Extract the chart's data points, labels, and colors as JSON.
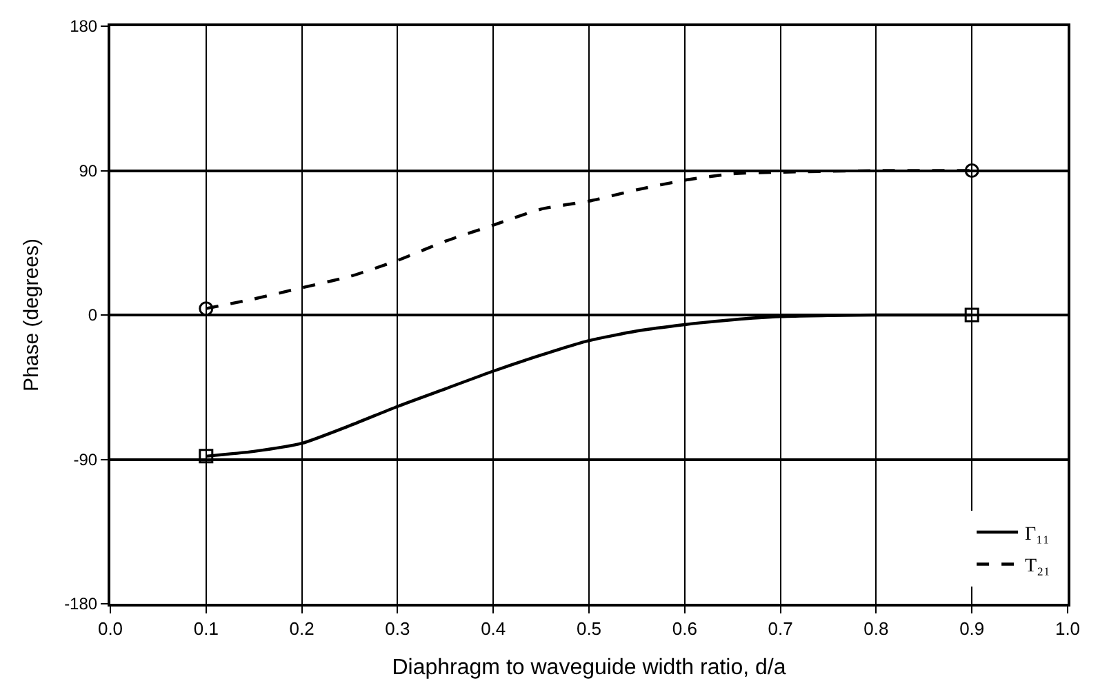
{
  "chart_data": {
    "type": "line",
    "xlabel": "Diaphragm to waveguide width ratio, d/a",
    "ylabel": "Phase (degrees)",
    "xlim": [
      0,
      1.0
    ],
    "ylim": [
      -180,
      180
    ],
    "xticks": [
      {
        "value": 0,
        "label": "0.0"
      },
      {
        "value": 0.1,
        "label": "0.1"
      },
      {
        "value": 0.2,
        "label": "0.2"
      },
      {
        "value": 0.3,
        "label": "0.3"
      },
      {
        "value": 0.4,
        "label": "0.4"
      },
      {
        "value": 0.5,
        "label": "0.5"
      },
      {
        "value": 0.6,
        "label": "0.6"
      },
      {
        "value": 0.7,
        "label": "0.7"
      },
      {
        "value": 0.8,
        "label": "0.8"
      },
      {
        "value": 0.9,
        "label": "0.9"
      },
      {
        "value": 1.0,
        "label": "1.0"
      }
    ],
    "yticks": [
      -180,
      -90,
      0,
      90,
      180
    ],
    "grid": true,
    "legend": "bottom right",
    "series": [
      {
        "name": "Γ₁₁",
        "color": "#000000",
        "line_style": "solid",
        "x": [
          0.1,
          0.15,
          0.2,
          0.25,
          0.3,
          0.35,
          0.4,
          0.45,
          0.5,
          0.55,
          0.6,
          0.65,
          0.7,
          0.8,
          0.9
        ],
        "values": [
          -88,
          -85,
          -80,
          -69,
          -57,
          -46,
          -35,
          -25,
          -16,
          -10,
          -6,
          -3,
          -1,
          0,
          0
        ]
      },
      {
        "name": "T₂₁",
        "color": "#000000",
        "line_style": "dashed",
        "x": [
          0.1,
          0.15,
          0.2,
          0.25,
          0.3,
          0.35,
          0.4,
          0.45,
          0.5,
          0.55,
          0.6,
          0.65,
          0.7,
          0.8,
          0.9
        ],
        "values": [
          4,
          10,
          17,
          24,
          34,
          46,
          56,
          66,
          71,
          78,
          84,
          88,
          89,
          90,
          90
        ]
      },
      {
        "type": "scatter",
        "color": "#000000",
        "marker": "square",
        "x": [
          0.1,
          0.9
        ],
        "values": [
          -88,
          0
        ]
      },
      {
        "type": "scatter",
        "color": "#000000",
        "marker": "circle",
        "x": [
          0.1,
          0.9
        ],
        "values": [
          4,
          90
        ]
      }
    ]
  }
}
